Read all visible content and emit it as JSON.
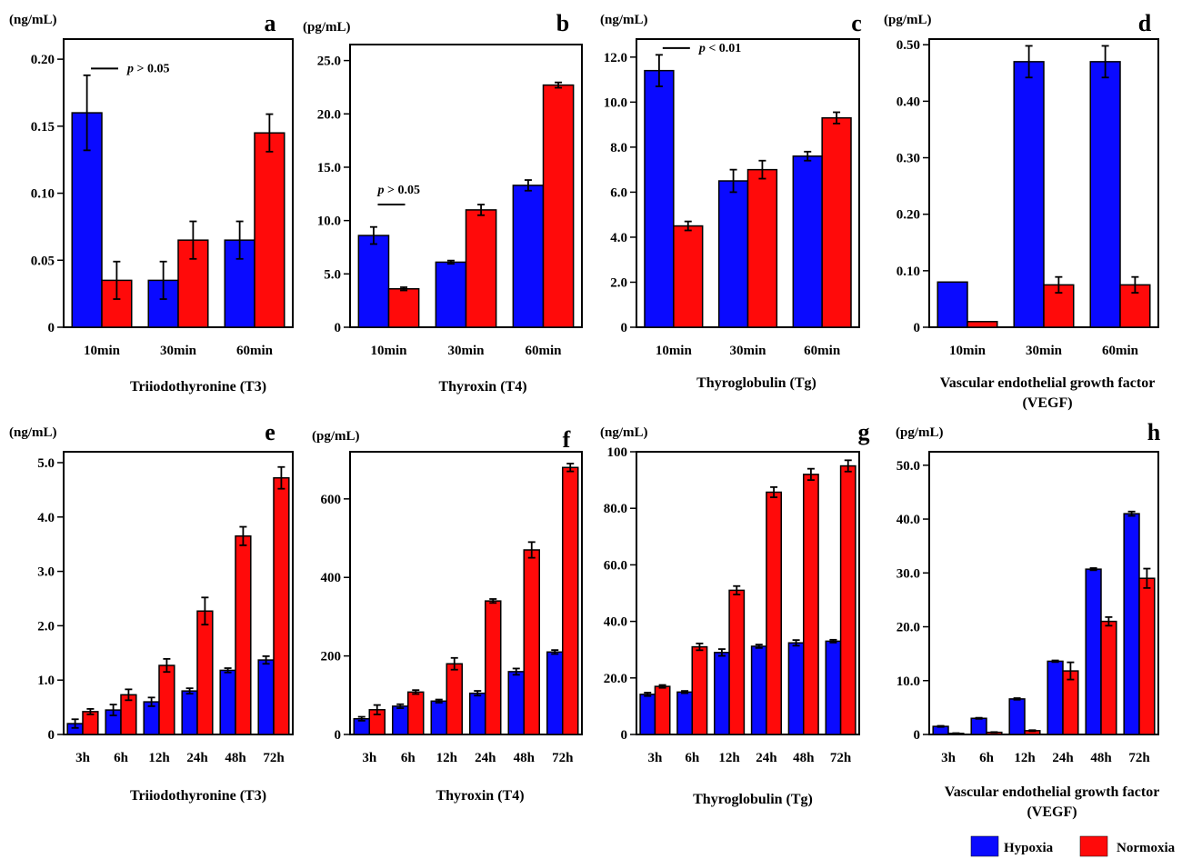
{
  "colors": {
    "hypoxia": "#0a0aff",
    "normoxia": "#ff0a0a"
  },
  "legend": [
    {
      "label": "Hypoxia",
      "color": "#0a0aff"
    },
    {
      "label": "Normoxia",
      "color": "#ff0a0a"
    }
  ],
  "chart_data": [
    {
      "panel": "a",
      "type": "bar",
      "unit": "(ng/mL)",
      "xtitle": [
        "Triiodothyronine (T3)"
      ],
      "categories": [
        "10min",
        "30min",
        "60min"
      ],
      "ylim": [
        0,
        0.215
      ],
      "yticks": [
        0,
        0.05,
        0.1,
        0.15,
        0.2
      ],
      "yticklabels": [
        "0",
        "0.05",
        "0.10",
        "0.15",
        "0.20"
      ],
      "series": [
        {
          "name": "Hypoxia",
          "values": [
            0.16,
            0.035,
            0.065
          ],
          "errors": [
            0.028,
            0.014,
            0.014
          ]
        },
        {
          "name": "Normoxia",
          "values": [
            0.035,
            0.065,
            0.145
          ],
          "errors": [
            0.014,
            0.014,
            0.014
          ]
        }
      ],
      "annotations": [
        {
          "text": "p > 0.05",
          "category_index": 0,
          "y": 0.193
        }
      ]
    },
    {
      "panel": "b",
      "type": "bar",
      "unit": "(pg/mL)",
      "xtitle": [
        "Thyroxin (T4)"
      ],
      "categories": [
        "10min",
        "30min",
        "60min"
      ],
      "ylim": [
        0,
        26.5
      ],
      "yticks": [
        0,
        5,
        10,
        15,
        20,
        25
      ],
      "yticklabels": [
        "0",
        "5.0",
        "10.0",
        "15.0",
        "20.0",
        "25.0"
      ],
      "series": [
        {
          "name": "Hypoxia",
          "values": [
            8.6,
            6.1,
            13.3
          ],
          "errors": [
            0.8,
            0.15,
            0.5
          ]
        },
        {
          "name": "Normoxia",
          "values": [
            3.6,
            11.0,
            22.7
          ],
          "errors": [
            0.15,
            0.5,
            0.25
          ]
        }
      ],
      "annotations": [
        {
          "text": "p > 0.05",
          "category_index": 0,
          "y": 11.5
        }
      ]
    },
    {
      "panel": "c",
      "type": "bar",
      "unit": "(ng/mL)",
      "xtitle": [
        "Thyroglobulin (Tg)"
      ],
      "categories": [
        "10min",
        "30min",
        "60min"
      ],
      "ylim": [
        0,
        12.8
      ],
      "yticks": [
        0,
        2,
        4,
        6,
        8,
        10,
        12
      ],
      "yticklabels": [
        "0",
        "2.0",
        "4.0",
        "6.0",
        "8.0",
        "10.0",
        "12.0"
      ],
      "series": [
        {
          "name": "Hypoxia",
          "values": [
            11.4,
            6.5,
            7.6
          ],
          "errors": [
            0.7,
            0.5,
            0.2
          ]
        },
        {
          "name": "Normoxia",
          "values": [
            4.5,
            7.0,
            9.3
          ],
          "errors": [
            0.2,
            0.4,
            0.25
          ]
        }
      ],
      "annotations": [
        {
          "text": "p < 0.01",
          "category_index": 0,
          "y": 12.4
        }
      ]
    },
    {
      "panel": "d",
      "type": "bar",
      "unit": "(pg/mL)",
      "xtitle": [
        "Vascular endothelial growth factor",
        "(VEGF)"
      ],
      "categories": [
        "10min",
        "30min",
        "60min"
      ],
      "ylim": [
        0,
        0.51
      ],
      "yticks": [
        0,
        0.1,
        0.2,
        0.3,
        0.4,
        0.5
      ],
      "yticklabels": [
        "0",
        "0.10",
        "0.20",
        "0.30",
        "0.40",
        "0.50"
      ],
      "series": [
        {
          "name": "Hypoxia",
          "values": [
            0.08,
            0.47,
            0.47
          ],
          "errors": [
            0,
            0.028,
            0.028
          ]
        },
        {
          "name": "Normoxia",
          "values": [
            0.01,
            0.075,
            0.075
          ],
          "errors": [
            0,
            0.014,
            0.014
          ]
        }
      ],
      "annotations": []
    },
    {
      "panel": "e",
      "type": "bar",
      "unit": "(ng/mL)",
      "xtitle": [
        "Triiodothyronine (T3)"
      ],
      "categories": [
        "3h",
        "6h",
        "12h",
        "24h",
        "48h",
        "72h"
      ],
      "ylim": [
        0,
        5.2
      ],
      "yticks": [
        0,
        1,
        2,
        3,
        4,
        5
      ],
      "yticklabels": [
        "0",
        "1.0",
        "2.0",
        "3.0",
        "4.0",
        "5.0"
      ],
      "series": [
        {
          "name": "Hypoxia",
          "values": [
            0.2,
            0.45,
            0.6,
            0.8,
            1.18,
            1.37
          ],
          "errors": [
            0.08,
            0.1,
            0.08,
            0.05,
            0.04,
            0.07
          ]
        },
        {
          "name": "Normoxia",
          "values": [
            0.42,
            0.73,
            1.27,
            2.27,
            3.65,
            4.72
          ],
          "errors": [
            0.05,
            0.1,
            0.12,
            0.25,
            0.17,
            0.2
          ]
        }
      ],
      "annotations": []
    },
    {
      "panel": "f",
      "type": "bar",
      "unit": "(pg/mL)",
      "xtitle": [
        "Thyroxin (T4)"
      ],
      "categories": [
        "3h",
        "6h",
        "12h",
        "24h",
        "48h",
        "72h"
      ],
      "ylim": [
        0,
        720
      ],
      "yticks": [
        0,
        200,
        400,
        600
      ],
      "yticklabels": [
        "0",
        "200",
        "400",
        "600"
      ],
      "series": [
        {
          "name": "Hypoxia",
          "values": [
            40,
            72,
            85,
            105,
            160,
            210
          ],
          "errors": [
            5,
            5,
            4,
            6,
            8,
            5
          ]
        },
        {
          "name": "Normoxia",
          "values": [
            63,
            108,
            180,
            340,
            470,
            680
          ],
          "errors": [
            12,
            5,
            15,
            5,
            20,
            10
          ]
        }
      ],
      "annotations": []
    },
    {
      "panel": "g",
      "type": "bar",
      "unit": "(ng/mL)",
      "xtitle": [
        "Thyroglobulin (Tg)"
      ],
      "categories": [
        "3h",
        "6h",
        "12h",
        "24h",
        "48h",
        "72h"
      ],
      "ylim": [
        0,
        100
      ],
      "yticks": [
        0,
        20,
        40,
        60,
        80,
        100
      ],
      "yticklabels": [
        "0",
        "20.0",
        "40.0",
        "60.0",
        "80.0",
        "100"
      ],
      "series": [
        {
          "name": "Hypoxia",
          "values": [
            14.2,
            15.0,
            29.0,
            31.2,
            32.4,
            33.0
          ],
          "errors": [
            0.6,
            0.4,
            1.2,
            0.6,
            1.0,
            0.5
          ]
        },
        {
          "name": "Normoxia",
          "values": [
            17.0,
            31.0,
            51.0,
            85.7,
            92.0,
            95.0
          ],
          "errors": [
            0.5,
            1.2,
            1.5,
            1.8,
            2.0,
            2.0
          ]
        }
      ],
      "annotations": []
    },
    {
      "panel": "h",
      "type": "bar",
      "unit": "(pg/mL)",
      "xtitle": [
        "Vascular endothelial growth factor",
        "(VEGF)"
      ],
      "categories": [
        "3h",
        "6h",
        "12h",
        "24h",
        "48h",
        "72h"
      ],
      "ylim": [
        0,
        52.5
      ],
      "yticks": [
        0,
        10,
        20,
        30,
        40,
        50
      ],
      "yticklabels": [
        "0",
        "10.0",
        "20.0",
        "30.0",
        "40.0",
        "50.0"
      ],
      "series": [
        {
          "name": "Hypoxia",
          "values": [
            1.5,
            3.0,
            6.6,
            13.6,
            30.7,
            41.0
          ],
          "errors": [
            0.1,
            0.1,
            0.15,
            0.15,
            0.2,
            0.4
          ]
        },
        {
          "name": "Normoxia",
          "values": [
            0.2,
            0.4,
            0.7,
            11.8,
            21.0,
            29.0
          ],
          "errors": [
            0.05,
            0.05,
            0.1,
            1.6,
            0.8,
            1.8
          ]
        }
      ],
      "annotations": []
    }
  ]
}
